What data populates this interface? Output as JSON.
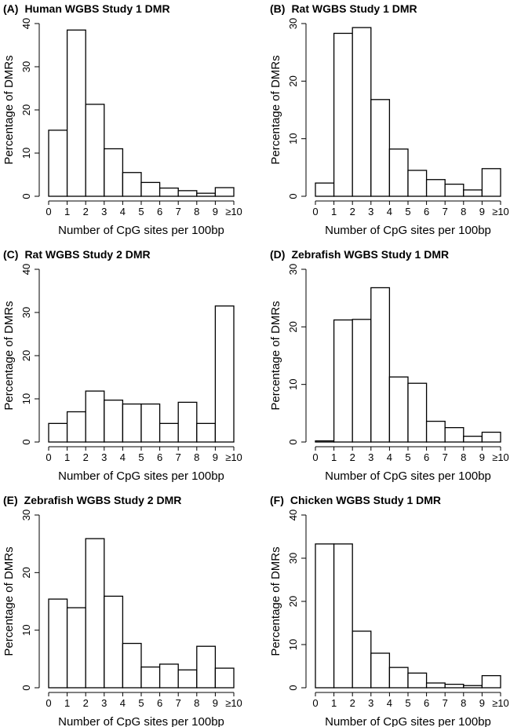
{
  "chart_data": [
    {
      "type": "histogram",
      "panel": "(A)",
      "title": "Human WGBS Study 1 DMR",
      "xlabel": "Number of CpG sites per 100bp",
      "ylabel": "Percentage of  DMRs",
      "bins": [
        0,
        1,
        2,
        3,
        4,
        5,
        6,
        7,
        8,
        9,
        10
      ],
      "values": [
        15.3,
        38.5,
        21.3,
        11,
        5.5,
        3.2,
        1.9,
        1.3,
        0.7,
        2.0
      ],
      "xticks": [
        0,
        1,
        2,
        3,
        4,
        5,
        6,
        7,
        8,
        9,
        {
          "value": 10,
          "label": "≥10"
        }
      ],
      "ylim": [
        0,
        40
      ],
      "yticks": [
        0,
        10,
        20,
        30,
        40
      ],
      "color": "#ffffff",
      "edgecolor": "#000000"
    },
    {
      "type": "histogram",
      "panel": "(B)",
      "title": "Rat WGBS Study 1 DMR",
      "xlabel": "Number of CpG sites per 100bp",
      "ylabel": "Percentage of  DMRs",
      "bins": [
        0,
        1,
        2,
        3,
        4,
        5,
        6,
        7,
        8,
        9,
        10
      ],
      "values": [
        2.3,
        28.3,
        29.3,
        16.8,
        8.2,
        4.5,
        2.9,
        2.1,
        1.1,
        4.8
      ],
      "xticks": [
        0,
        1,
        2,
        3,
        4,
        5,
        6,
        7,
        8,
        9,
        {
          "value": 10,
          "label": "≥10"
        }
      ],
      "ylim": [
        0,
        30
      ],
      "yticks": [
        0,
        10,
        20,
        30
      ],
      "color": "#ffffff",
      "edgecolor": "#000000"
    },
    {
      "type": "histogram",
      "panel": "(C)",
      "title": "Rat WGBS Study 2 DMR",
      "xlabel": "Number of CpG sites per 100bp",
      "ylabel": "Percentage of  DMRs",
      "bins": [
        0,
        1,
        2,
        3,
        4,
        5,
        6,
        7,
        8,
        9,
        10
      ],
      "values": [
        4.3,
        7.0,
        11.8,
        9.7,
        8.8,
        8.8,
        4.3,
        9.2,
        4.3,
        31.5
      ],
      "xticks": [
        0,
        1,
        2,
        3,
        4,
        5,
        6,
        7,
        8,
        9,
        {
          "value": 10,
          "label": "≥10"
        }
      ],
      "ylim": [
        0,
        40
      ],
      "yticks": [
        0,
        10,
        20,
        30,
        40
      ],
      "color": "#ffffff",
      "edgecolor": "#000000"
    },
    {
      "type": "histogram",
      "panel": "(D)",
      "title": "Zebrafish WGBS Study 1 DMR",
      "xlabel": "Number of CpG sites per 100bp",
      "ylabel": "Percentage of  DMRs",
      "bins": [
        0,
        1,
        2,
        3,
        4,
        5,
        6,
        7,
        8,
        9,
        10
      ],
      "values": [
        0.2,
        21.2,
        21.3,
        26.8,
        11.3,
        10.2,
        3.6,
        2.5,
        1.0,
        1.7
      ],
      "xticks": [
        0,
        1,
        2,
        3,
        4,
        5,
        6,
        7,
        8,
        9,
        {
          "value": 10,
          "label": "≥10"
        }
      ],
      "ylim": [
        0,
        30
      ],
      "yticks": [
        0,
        10,
        20,
        30
      ],
      "color": "#ffffff",
      "edgecolor": "#000000"
    },
    {
      "type": "histogram",
      "panel": "(E)",
      "title": "Zebrafish WGBS Study 2 DMR",
      "xlabel": "Number of CpG sites per 100bp",
      "ylabel": "Percentage of  DMRs",
      "bins": [
        0,
        1,
        2,
        3,
        4,
        5,
        6,
        7,
        8,
        9,
        10
      ],
      "values": [
        15.4,
        13.9,
        25.9,
        15.9,
        7.7,
        3.6,
        4.1,
        3.1,
        7.2,
        3.4
      ],
      "xticks": [
        0,
        1,
        2,
        3,
        4,
        5,
        6,
        7,
        8,
        9,
        {
          "value": 10,
          "label": "≥10"
        }
      ],
      "ylim": [
        0,
        30
      ],
      "yticks": [
        0,
        10,
        20,
        30
      ],
      "color": "#ffffff",
      "edgecolor": "#000000"
    },
    {
      "type": "histogram",
      "panel": "(F)",
      "title": "Chicken WGBS Study 1 DMR",
      "xlabel": "Number of CpG sites per 100bp",
      "ylabel": "Percentage of  DMRs",
      "bins": [
        0,
        1,
        2,
        3,
        4,
        5,
        6,
        7,
        8,
        9,
        10
      ],
      "values": [
        33.3,
        33.3,
        13.1,
        8.0,
        4.7,
        3.4,
        1.1,
        0.8,
        0.5,
        2.8
      ],
      "xticks": [
        0,
        1,
        2,
        3,
        4,
        5,
        6,
        7,
        8,
        9,
        {
          "value": 10,
          "label": "≥10"
        }
      ],
      "ylim": [
        0,
        40
      ],
      "yticks": [
        0,
        10,
        20,
        30,
        40
      ],
      "color": "#ffffff",
      "edgecolor": "#000000"
    }
  ]
}
